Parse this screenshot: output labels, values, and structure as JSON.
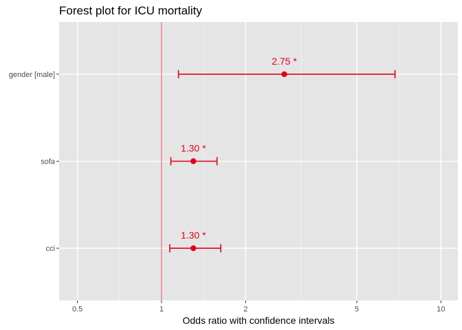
{
  "chart_data": {
    "type": "forest",
    "title": "Forest plot for ICU mortality",
    "xlabel": "Odds ratio with confidence intervals",
    "ylabel": "",
    "x_scale": "log",
    "xlim": [
      0.43,
      11.5
    ],
    "x_ticks": [
      0.5,
      1,
      2,
      5,
      10
    ],
    "x_tick_labels": [
      "0.5",
      "1",
      "2",
      "5",
      "10"
    ],
    "reference_line": 1,
    "grid": true,
    "color": "#e0001b",
    "rows": [
      {
        "term": "gender [male]",
        "estimate": 2.75,
        "ci_low": 1.15,
        "ci_high": 6.85,
        "label": "2.75 *"
      },
      {
        "term": "sofa",
        "estimate": 1.3,
        "ci_low": 1.08,
        "ci_high": 1.58,
        "label": "1.30 *"
      },
      {
        "term": "cci",
        "estimate": 1.3,
        "ci_low": 1.07,
        "ci_high": 1.63,
        "label": "1.30 *"
      }
    ]
  }
}
